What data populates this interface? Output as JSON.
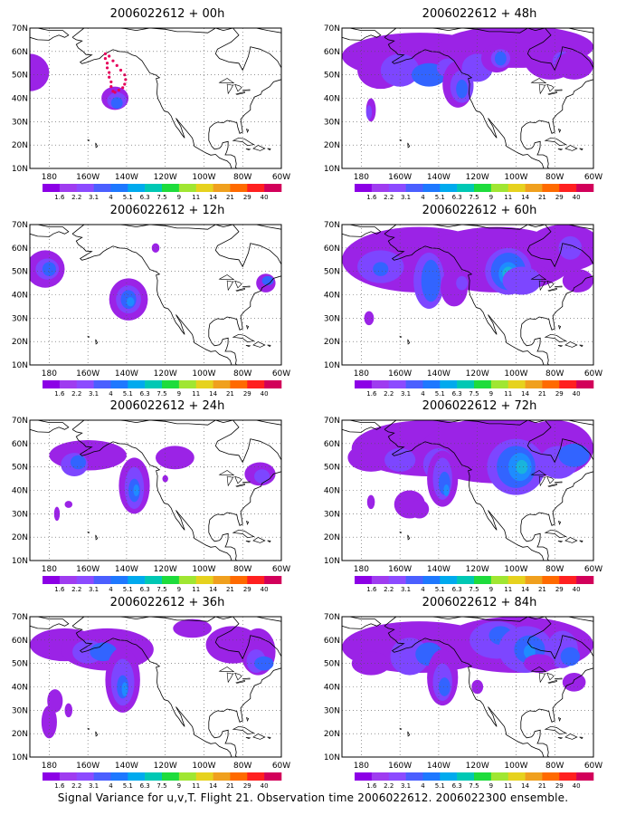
{
  "figure": {
    "caption": "Signal Variance for u,v,T. Flight 21. Observation time 2006022612. 2006022300 ensemble."
  },
  "panels": [
    {
      "title": "2006022612 + 00h",
      "lead": "00h"
    },
    {
      "title": "2006022612 + 12h",
      "lead": "12h"
    },
    {
      "title": "2006022612 + 24h",
      "lead": "24h"
    },
    {
      "title": "2006022612 + 36h",
      "lead": "36h"
    },
    {
      "title": "2006022612 + 48h",
      "lead": "48h"
    },
    {
      "title": "2006022612 + 60h",
      "lead": "60h"
    },
    {
      "title": "2006022612 + 72h",
      "lead": "72h"
    },
    {
      "title": "2006022612 + 84h",
      "lead": "84h"
    }
  ],
  "map": {
    "lat_ticks": [
      "10N",
      "20N",
      "30N",
      "40N",
      "50N",
      "60N",
      "70N"
    ],
    "lon_ticks": [
      "180",
      "160W",
      "140W",
      "120W",
      "100W",
      "80W",
      "60W"
    ],
    "lat_range": [
      10,
      70
    ],
    "lon_range": [
      -190,
      -60
    ],
    "grid": "dotted"
  },
  "colorbar": {
    "labels": [
      "1.6",
      "2.2",
      "3.1",
      "4",
      "5.1",
      "6.3",
      "7.5",
      "9",
      "11",
      "14",
      "21",
      "29",
      "40"
    ],
    "colors": [
      "#8c00e6",
      "#9f3cf0",
      "#8c4bff",
      "#4b5fff",
      "#1e78ff",
      "#00aaee",
      "#00c8b4",
      "#1edc3c",
      "#a0e632",
      "#e6d21e",
      "#f0a01e",
      "#ff6a00",
      "#ff2020",
      "#d2005a"
    ]
  },
  "contour_colors": {
    "level1": "#9b23e6",
    "level2": "#7d46ff",
    "level3": "#3264ff",
    "level4": "#1e8cff",
    "level5": "#19b4dc"
  },
  "flight_track_color": "#e6005a"
}
